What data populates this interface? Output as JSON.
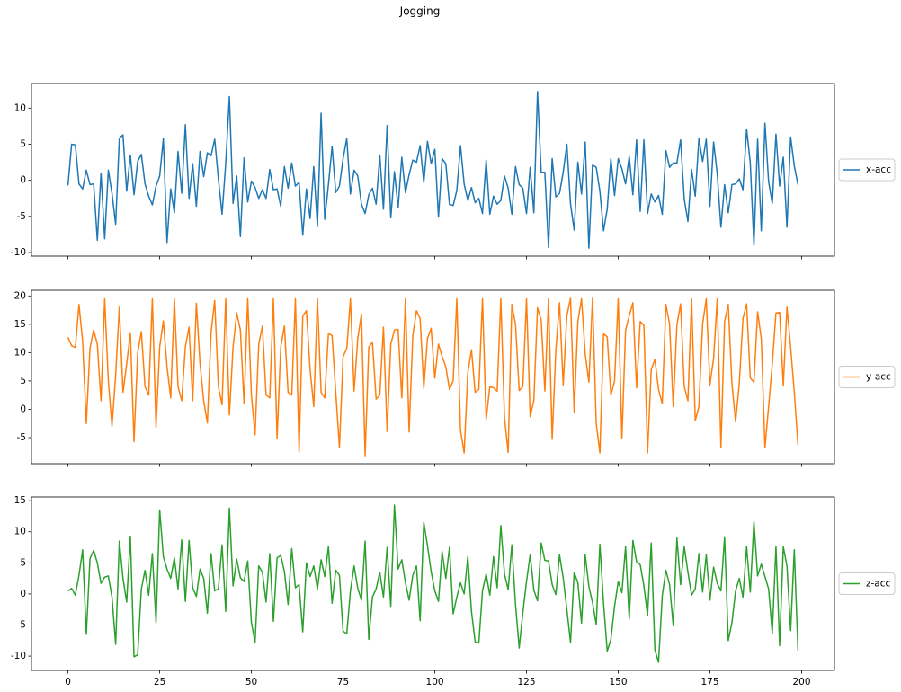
{
  "title": "Jogging",
  "chart_data": [
    {
      "type": "line",
      "xlim": [
        -9.95,
        208.95
      ],
      "xticks": [
        0,
        25,
        50,
        75,
        100,
        125,
        150,
        175,
        200
      ],
      "ylim": [
        -10.5,
        13.4
      ],
      "yticks": [
        -10,
        -5,
        0,
        5,
        10
      ],
      "legend": "right",
      "x": [
        0,
        1,
        2,
        3,
        4,
        5,
        6,
        7,
        8,
        9,
        10,
        11,
        12,
        13,
        14,
        15,
        16,
        17,
        18,
        19,
        20,
        21,
        22,
        23,
        24,
        25,
        26,
        27,
        28,
        29,
        30,
        31,
        32,
        33,
        34,
        35,
        36,
        37,
        38,
        39,
        40,
        41,
        42,
        43,
        44,
        45,
        46,
        47,
        48,
        49,
        50,
        51,
        52,
        53,
        54,
        55,
        56,
        57,
        58,
        59,
        60,
        61,
        62,
        63,
        64,
        65,
        66,
        67,
        68,
        69,
        70,
        71,
        72,
        73,
        74,
        75,
        76,
        77,
        78,
        79,
        80,
        81,
        82,
        83,
        84,
        85,
        86,
        87,
        88,
        89,
        90,
        91,
        92,
        93,
        94,
        95,
        96,
        97,
        98,
        99,
        100,
        101,
        102,
        103,
        104,
        105,
        106,
        107,
        108,
        109,
        110,
        111,
        112,
        113,
        114,
        115,
        116,
        117,
        118,
        119,
        120,
        121,
        122,
        123,
        124,
        125,
        126,
        127,
        128,
        129,
        130,
        131,
        132,
        133,
        134,
        135,
        136,
        137,
        138,
        139,
        140,
        141,
        142,
        143,
        144,
        145,
        146,
        147,
        148,
        149,
        150,
        151,
        152,
        153,
        154,
        155,
        156,
        157,
        158,
        159,
        160,
        161,
        162,
        163,
        164,
        165,
        166,
        167,
        168,
        169,
        170,
        171,
        172,
        173,
        174,
        175,
        176,
        177,
        178,
        179,
        180,
        181,
        182,
        183,
        184,
        185,
        186,
        187,
        188,
        189,
        190,
        191,
        192,
        193,
        194,
        195,
        196,
        197,
        198,
        199
      ],
      "series": [
        {
          "name": "x-acc",
          "color": "#1f77b4",
          "values": [
            -0.7,
            5,
            4.9,
            -0.5,
            -1.2,
            1.4,
            -0.6,
            -0.5,
            -8.3,
            1,
            -8.1,
            1.4,
            -1.8,
            -6.1,
            5.8,
            6.3,
            -1.5,
            3.5,
            -2,
            2.6,
            3.6,
            -0.5,
            -2.2,
            -3.4,
            -0.8,
            0.6,
            5.8,
            -8.6,
            -1.2,
            -4.5,
            4,
            -1.8,
            7.7,
            -2.5,
            2.3,
            -3.6,
            4,
            0.5,
            3.8,
            3.4,
            5.7,
            0.2,
            -4.7,
            2.3,
            11.6,
            -3.2,
            0.6,
            -7.8,
            3.1,
            -3,
            -0.1,
            -1,
            -2.5,
            -1.3,
            -2.5,
            1.5,
            -1.3,
            -1.2,
            -3.6,
            1.9,
            -1.1,
            2.4,
            -0.8,
            -0.3,
            -7.6,
            -1.2,
            -5.3,
            1.9,
            -6.4,
            9.3,
            -5.4,
            -0.6,
            4.7,
            -1.7,
            -0.8,
            3,
            5.8,
            -1.9,
            1.4,
            0.6,
            -3.3,
            -4.6,
            -2,
            -1.1,
            -3.3,
            3.5,
            -4,
            7.6,
            -5.2,
            1.2,
            -3.8,
            3.2,
            -1.7,
            0.8,
            2.8,
            2.5,
            4.8,
            -0.3,
            5.4,
            2.3,
            4.3,
            -5.1,
            3,
            2.3,
            -3.3,
            -3.5,
            -1.4,
            4.8,
            -0.5,
            -2.8,
            -1,
            -3.1,
            -2.5,
            -4.6,
            2.8,
            -4.7,
            -2.2,
            -3.3,
            -2.8,
            0.6,
            -1.1,
            -4.7,
            1.9,
            -0.6,
            -1.1,
            -4.6,
            1.8,
            -4.5,
            12.3,
            1.1,
            1.1,
            -9.3,
            3,
            -2.3,
            -1.8,
            1.1,
            5,
            -3.3,
            -6.9,
            2.5,
            -1.9,
            5.3,
            -9.4,
            2.1,
            1.8,
            -1.5,
            -7,
            -4,
            3,
            -2.1,
            3,
            1.6,
            -0.5,
            3.3,
            -2,
            5.6,
            -4.3,
            5.6,
            -4.6,
            -1.9,
            -3,
            -2.1,
            -4.7,
            4.1,
            1.8,
            2.4,
            2.4,
            5.6,
            -2.6,
            -5.7,
            1.5,
            -2.2,
            5.8,
            2.6,
            5.7,
            -3.6,
            5.3,
            0.9,
            -6.5,
            -0.6,
            -4.5,
            -0.6,
            -0.5,
            0.2,
            -1.3,
            7.1,
            2.4,
            -9,
            5.7,
            -7,
            7.9,
            -0.2,
            -3.2,
            6.4,
            -0.8,
            3.2,
            -6.5,
            6,
            2,
            -0.6
          ]
        }
      ]
    },
    {
      "type": "line",
      "xlim": [
        -9.95,
        208.95
      ],
      "xticks": [
        0,
        25,
        50,
        75,
        100,
        125,
        150,
        175,
        200
      ],
      "ylim": [
        -9.6,
        21.0
      ],
      "yticks": [
        -5,
        0,
        5,
        10,
        15,
        20
      ],
      "legend": "right",
      "x": [
        0,
        1,
        2,
        3,
        4,
        5,
        6,
        7,
        8,
        9,
        10,
        11,
        12,
        13,
        14,
        15,
        16,
        17,
        18,
        19,
        20,
        21,
        22,
        23,
        24,
        25,
        26,
        27,
        28,
        29,
        30,
        31,
        32,
        33,
        34,
        35,
        36,
        37,
        38,
        39,
        40,
        41,
        42,
        43,
        44,
        45,
        46,
        47,
        48,
        49,
        50,
        51,
        52,
        53,
        54,
        55,
        56,
        57,
        58,
        59,
        60,
        61,
        62,
        63,
        64,
        65,
        66,
        67,
        68,
        69,
        70,
        71,
        72,
        73,
        74,
        75,
        76,
        77,
        78,
        79,
        80,
        81,
        82,
        83,
        84,
        85,
        86,
        87,
        88,
        89,
        90,
        91,
        92,
        93,
        94,
        95,
        96,
        97,
        98,
        99,
        100,
        101,
        102,
        103,
        104,
        105,
        106,
        107,
        108,
        109,
        110,
        111,
        112,
        113,
        114,
        115,
        116,
        117,
        118,
        119,
        120,
        121,
        122,
        123,
        124,
        125,
        126,
        127,
        128,
        129,
        130,
        131,
        132,
        133,
        134,
        135,
        136,
        137,
        138,
        139,
        140,
        141,
        142,
        143,
        144,
        145,
        146,
        147,
        148,
        149,
        150,
        151,
        152,
        153,
        154,
        155,
        156,
        157,
        158,
        159,
        160,
        161,
        162,
        163,
        164,
        165,
        166,
        167,
        168,
        169,
        170,
        171,
        172,
        173,
        174,
        175,
        176,
        177,
        178,
        179,
        180,
        181,
        182,
        183,
        184,
        185,
        186,
        187,
        188,
        189,
        190,
        191,
        192,
        193,
        194,
        195,
        196,
        197,
        198,
        199
      ],
      "series": [
        {
          "name": "y-acc",
          "color": "#ff7f0e",
          "values": [
            12.7,
            11.2,
            10.9,
            18.5,
            12,
            -2.5,
            10.8,
            14,
            11.5,
            1.5,
            19.5,
            5,
            -3,
            6,
            18,
            3,
            8,
            13.5,
            -5.7,
            10,
            13.7,
            4,
            2.5,
            19.5,
            -3.2,
            11,
            15.6,
            7.5,
            2,
            19.5,
            4,
            1.5,
            11,
            14.5,
            1.5,
            18.7,
            8,
            1.5,
            -2.4,
            13.5,
            19.2,
            4,
            0.8,
            19.5,
            -1,
            11,
            17,
            14,
            1,
            19.5,
            2.5,
            -4.5,
            11.5,
            14.7,
            2.5,
            2,
            19.5,
            -5.2,
            11,
            14.7,
            3,
            2.5,
            19.5,
            -7.5,
            16.5,
            17.4,
            7,
            0.5,
            19.5,
            3,
            2,
            13.4,
            13,
            3,
            -6.7,
            9.3,
            10.7,
            19.5,
            3.2,
            12.5,
            16.8,
            -8.2,
            11,
            11.8,
            1.8,
            2.5,
            14.5,
            -3.9,
            11.5,
            14,
            14.1,
            2,
            19.5,
            -4,
            13,
            17.4,
            16,
            3.7,
            12.5,
            14.3,
            5.5,
            11.5,
            9.3,
            7.5,
            3.5,
            5,
            19.5,
            -3.7,
            -7.7,
            6.5,
            10.5,
            3,
            3.5,
            19.5,
            -1.8,
            4,
            3.8,
            3.2,
            19.5,
            -1.5,
            -7.6,
            18.5,
            15,
            3.3,
            4,
            19.5,
            -1.3,
            1.6,
            17.9,
            15.8,
            3.2,
            19.5,
            -5.3,
            10.5,
            18.8,
            4.3,
            16.5,
            19.6,
            -0.5,
            15.5,
            19.5,
            9.8,
            4.8,
            19.6,
            -2.5,
            -7.7,
            13.3,
            12.8,
            2.5,
            5,
            19.5,
            -5.2,
            13.9,
            16.5,
            18.8,
            3.8,
            15.5,
            14.8,
            -7.7,
            7,
            8.8,
            3.5,
            1,
            18.5,
            15,
            0.5,
            14.9,
            18.6,
            4,
            1.5,
            19.5,
            -2,
            0.5,
            15,
            19.5,
            4.3,
            9,
            19.5,
            -6.8,
            15.5,
            18.5,
            4.5,
            -2.2,
            4.5,
            16,
            18.6,
            5.5,
            4.8,
            17.2,
            12.5,
            -6.8,
            0.5,
            8,
            17,
            17.1,
            4.2,
            18,
            11,
            3,
            -6.3
          ]
        }
      ]
    },
    {
      "type": "line",
      "xlim": [
        -9.95,
        208.95
      ],
      "xticks": [
        0,
        25,
        50,
        75,
        100,
        125,
        150,
        175,
        200
      ],
      "ylim": [
        -12.3,
        15.6
      ],
      "yticks": [
        -10,
        -5,
        0,
        5,
        10,
        15
      ],
      "legend": "right",
      "x": [
        0,
        1,
        2,
        3,
        4,
        5,
        6,
        7,
        8,
        9,
        10,
        11,
        12,
        13,
        14,
        15,
        16,
        17,
        18,
        19,
        20,
        21,
        22,
        23,
        24,
        25,
        26,
        27,
        28,
        29,
        30,
        31,
        32,
        33,
        34,
        35,
        36,
        37,
        38,
        39,
        40,
        41,
        42,
        43,
        44,
        45,
        46,
        47,
        48,
        49,
        50,
        51,
        52,
        53,
        54,
        55,
        56,
        57,
        58,
        59,
        60,
        61,
        62,
        63,
        64,
        65,
        66,
        67,
        68,
        69,
        70,
        71,
        72,
        73,
        74,
        75,
        76,
        77,
        78,
        79,
        80,
        81,
        82,
        83,
        84,
        85,
        86,
        87,
        88,
        89,
        90,
        91,
        92,
        93,
        94,
        95,
        96,
        97,
        98,
        99,
        100,
        101,
        102,
        103,
        104,
        105,
        106,
        107,
        108,
        109,
        110,
        111,
        112,
        113,
        114,
        115,
        116,
        117,
        118,
        119,
        120,
        121,
        122,
        123,
        124,
        125,
        126,
        127,
        128,
        129,
        130,
        131,
        132,
        133,
        134,
        135,
        136,
        137,
        138,
        139,
        140,
        141,
        142,
        143,
        144,
        145,
        146,
        147,
        148,
        149,
        150,
        151,
        152,
        153,
        154,
        155,
        156,
        157,
        158,
        159,
        160,
        161,
        162,
        163,
        164,
        165,
        166,
        167,
        168,
        169,
        170,
        171,
        172,
        173,
        174,
        175,
        176,
        177,
        178,
        179,
        180,
        181,
        182,
        183,
        184,
        185,
        186,
        187,
        188,
        189,
        190,
        191,
        192,
        193,
        194,
        195,
        196,
        197,
        198,
        199
      ],
      "series": [
        {
          "name": "z-acc",
          "color": "#2ca02c",
          "values": [
            0.5,
            0.9,
            -0.2,
            3,
            7.1,
            -6.5,
            5.7,
            7,
            5,
            1.7,
            2.7,
            2.9,
            -0.5,
            -8.1,
            8.5,
            2.5,
            -1.3,
            9.3,
            -10.1,
            -9.8,
            0.8,
            3.8,
            -0.2,
            6.5,
            -4.6,
            13.5,
            6,
            4,
            2.5,
            5.8,
            0.8,
            8.7,
            -1.2,
            8.6,
            1,
            -0.4,
            4,
            2.5,
            -3.1,
            6.5,
            0.5,
            0.8,
            7.9,
            -2.8,
            13.8,
            1.3,
            5.6,
            2.6,
            2,
            5.3,
            -4.6,
            -7.8,
            4.5,
            3.5,
            -1.3,
            6.5,
            -4.4,
            5.8,
            6.2,
            3.6,
            -1.7,
            7.3,
            1,
            1.5,
            -6.1,
            5,
            2.8,
            4.5,
            0.8,
            5.5,
            2.8,
            7.6,
            -1.5,
            3.8,
            3,
            -6,
            -6.4,
            0.5,
            4.5,
            0.9,
            -1,
            8.5,
            -7.3,
            -0.5,
            0.8,
            3.5,
            -0.5,
            7.5,
            -2,
            14.3,
            4,
            5.5,
            1.8,
            -1,
            3,
            4.5,
            -4.3,
            11.5,
            7.8,
            3.6,
            0.5,
            -1.2,
            6.8,
            2.5,
            7.5,
            -3.2,
            -0.5,
            1.8,
            0,
            6,
            -2.8,
            -7.7,
            -7.9,
            0.5,
            3.2,
            -0.2,
            6,
            1,
            11,
            3.2,
            0.7,
            7.9,
            -1.7,
            -8.7,
            -3,
            2,
            6.3,
            0.6,
            -1.1,
            8.2,
            5.4,
            5.3,
            1.5,
            -0.1,
            6.3,
            2.6,
            -2.5,
            -7.8,
            3.5,
            1.8,
            -4.7,
            6.3,
            1.2,
            -1.4,
            -4.9,
            8,
            -1.5,
            -9.2,
            -7.3,
            -2,
            2,
            0.2,
            7.6,
            -4,
            8.6,
            5.2,
            4.7,
            1.3,
            -3.4,
            8.2,
            -9,
            -11,
            -0.3,
            3.8,
            1.5,
            -5.1,
            9,
            1.5,
            7.6,
            3.5,
            -0.2,
            0.8,
            6.5,
            0.3,
            6.3,
            -1,
            4.3,
            1.7,
            0.5,
            9.2,
            -7.5,
            -4.6,
            0.5,
            2.5,
            -0.5,
            7.6,
            0.3,
            11.6,
            2.9,
            4.8,
            2.8,
            0.8,
            -6.3,
            7.6,
            -8.3,
            7.6,
            4.5,
            -5.9,
            7.1,
            -9.1
          ]
        }
      ]
    }
  ]
}
